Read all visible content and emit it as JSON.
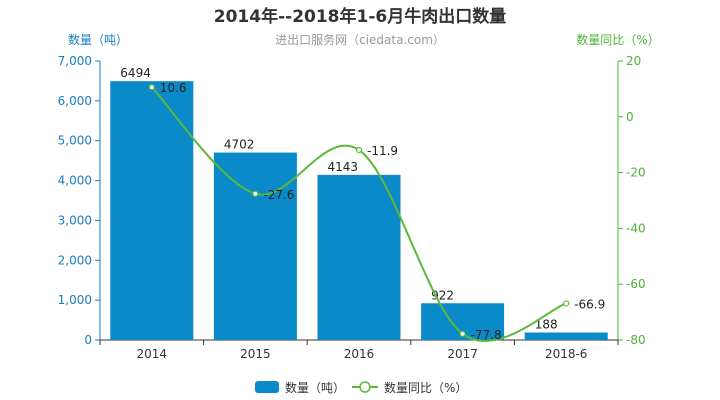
{
  "chart_data": {
    "type": "bar",
    "title": "2014年--2018年1-6月牛肉出口数量",
    "subtitle": "进出口服务网（ciedata.com）",
    "categories": [
      "2014",
      "2015",
      "2016",
      "2017",
      "2018-6"
    ],
    "series": [
      {
        "name": "数量（吨）",
        "type": "bar",
        "axis": "left",
        "values": [
          6494,
          4702,
          4143,
          922,
          188
        ],
        "labels": [
          "6494",
          "4702",
          "4143",
          "922",
          "188"
        ]
      },
      {
        "name": "数量同比（%）",
        "type": "line",
        "axis": "right",
        "values": [
          10.6,
          -27.6,
          -11.9,
          -77.8,
          -66.9
        ],
        "labels": [
          "10.6",
          "-27.6",
          "-11.9",
          "-77.8",
          "-66.9"
        ]
      }
    ],
    "y_left": {
      "label": "数量（吨）",
      "ylim": [
        0,
        7000
      ],
      "ticks": [
        0,
        1000,
        2000,
        3000,
        4000,
        5000,
        6000,
        7000
      ],
      "tick_labels": [
        "0",
        "1,000",
        "2,000",
        "3,000",
        "4,000",
        "5,000",
        "6,000",
        "7,000"
      ]
    },
    "y_right": {
      "label": "数量同比（%）",
      "ylim": [
        -80,
        20
      ],
      "ticks": [
        -80,
        -60,
        -40,
        -20,
        0,
        20
      ],
      "tick_labels": [
        "-80",
        "-60",
        "-40",
        "-20",
        "0",
        "20"
      ]
    },
    "grid": false,
    "legend": "bottom",
    "colors": {
      "bar": "#0b8ac9",
      "line": "#5cb83c",
      "left_axis": "#1a7fc4",
      "right_axis": "#4fb33a"
    }
  }
}
